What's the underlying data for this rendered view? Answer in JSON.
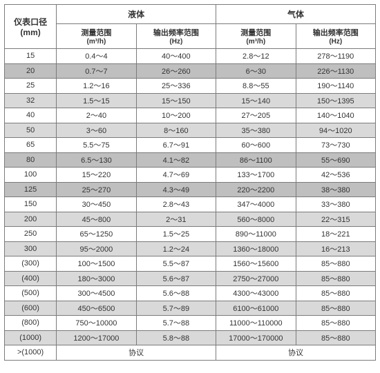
{
  "header": {
    "rowLabel": "仪表口径",
    "rowUnit": "(mm)",
    "group1": "液体",
    "group2": "气体",
    "measLabel": "测量范围",
    "measUnit": "(m³/h)",
    "freqLabel": "输出频率范围",
    "freqUnit": "(Hz)"
  },
  "rows": [
    {
      "band": "white",
      "dn": "15",
      "lm": "0.4～4",
      "lf": "40～400",
      "gm": "2.8～12",
      "gf": "278～1190"
    },
    {
      "band": "dark",
      "dn": "20",
      "lm": "0.7～7",
      "lf": "26～260",
      "gm": "6～30",
      "gf": "226～1130"
    },
    {
      "band": "white",
      "dn": "25",
      "lm": "1.2～16",
      "lf": "25～336",
      "gm": "8.8～55",
      "gf": "190～1140"
    },
    {
      "band": "light",
      "dn": "32",
      "lm": "1.5～15",
      "lf": "15～150",
      "gm": "15～140",
      "gf": "150～1395"
    },
    {
      "band": "white",
      "dn": "40",
      "lm": "2～40",
      "lf": "10～200",
      "gm": "27～205",
      "gf": "140～1040"
    },
    {
      "band": "light",
      "dn": "50",
      "lm": "3～60",
      "lf": "8～160",
      "gm": "35～380",
      "gf": "94～1020"
    },
    {
      "band": "white",
      "dn": "65",
      "lm": "5.5～75",
      "lf": "6.7～91",
      "gm": "60～600",
      "gf": "73～730"
    },
    {
      "band": "dark",
      "dn": "80",
      "lm": "6.5～130",
      "lf": "4.1～82",
      "gm": "86～1100",
      "gf": "55～690"
    },
    {
      "band": "white",
      "dn": "100",
      "lm": "15～220",
      "lf": "4.7～69",
      "gm": "133～1700",
      "gf": "42～536"
    },
    {
      "band": "dark",
      "dn": "125",
      "lm": "25～270",
      "lf": "4.3～49",
      "gm": "220～2200",
      "gf": "38～380"
    },
    {
      "band": "white",
      "dn": "150",
      "lm": "30～450",
      "lf": "2.8～43",
      "gm": "347～4000",
      "gf": "33～380"
    },
    {
      "band": "light",
      "dn": "200",
      "lm": "45～800",
      "lf": "2～31",
      "gm": "560～8000",
      "gf": "22～315"
    },
    {
      "band": "white",
      "dn": "250",
      "lm": "65～1250",
      "lf": "1.5～25",
      "gm": "890～11000",
      "gf": "18～221"
    },
    {
      "band": "light",
      "dn": "300",
      "lm": "95～2000",
      "lf": "1.2～24",
      "gm": "1360～18000",
      "gf": "16～213"
    },
    {
      "band": "white",
      "dn": "(300)",
      "lm": "100～1500",
      "lf": "5.5～87",
      "gm": "1560～15600",
      "gf": "85～880"
    },
    {
      "band": "light",
      "dn": "(400)",
      "lm": "180～3000",
      "lf": "5.6～87",
      "gm": "2750～27000",
      "gf": "85～880"
    },
    {
      "band": "white",
      "dn": "(500)",
      "lm": "300～4500",
      "lf": "5.6～88",
      "gm": "4300～43000",
      "gf": "85～880"
    },
    {
      "band": "light",
      "dn": "(600)",
      "lm": "450～6500",
      "lf": "5.7～89",
      "gm": "6100～61000",
      "gf": "85～880"
    },
    {
      "band": "white",
      "dn": "(800)",
      "lm": "750～10000",
      "lf": "5.7～88",
      "gm": "11000～110000",
      "gf": "85～880"
    },
    {
      "band": "light",
      "dn": "(1000)",
      "lm": "1200～17000",
      "lf": "5.8～88",
      "gm": "17000～170000",
      "gf": "85～880"
    },
    {
      "band": "white",
      "dn": ">(1000)",
      "lm": "协议",
      "lf": "",
      "gm": "协议",
      "gf": "",
      "mergeL": true,
      "mergeG": true
    }
  ]
}
